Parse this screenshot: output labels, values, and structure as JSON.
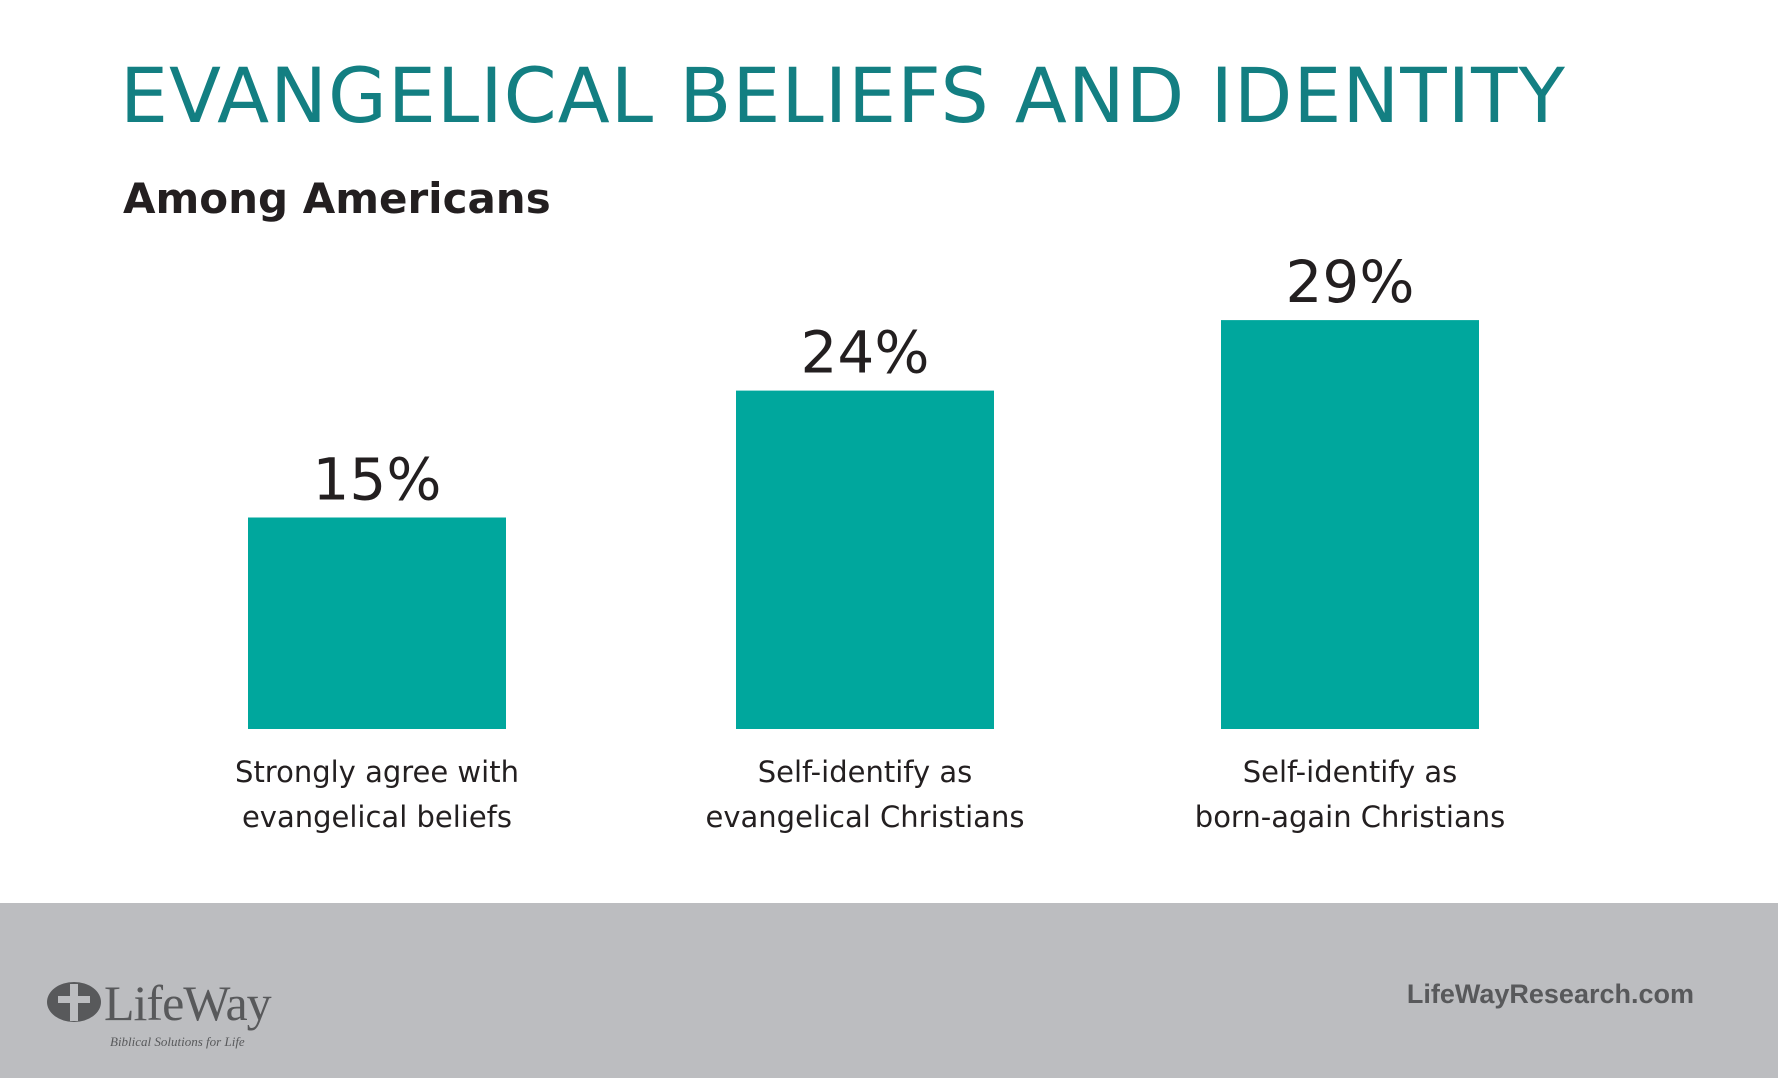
{
  "colors": {
    "title": "#137f82",
    "bar": "#00a79d",
    "text": "#231f20",
    "footer_bg": "#bcbdc0",
    "footer_text": "#58595b"
  },
  "chart_data": {
    "type": "bar",
    "title": "EVANGELICAL BELIEFS AND IDENTITY",
    "subtitle": "Among Americans",
    "categories": [
      [
        "Strongly agree with",
        "evangelical beliefs"
      ],
      [
        "Self-identify as",
        "evangelical Christians"
      ],
      [
        "Self-identify as",
        "born-again Christians"
      ]
    ],
    "values": [
      15,
      24,
      29
    ],
    "value_labels": [
      "15%",
      "24%",
      "29%"
    ],
    "unit": "%",
    "grid": false,
    "legend": "none"
  },
  "footer": {
    "logo_text": "LifeWay",
    "logo_tagline": "Biblical Solutions for Life",
    "url": "LifeWayResearch.com"
  }
}
